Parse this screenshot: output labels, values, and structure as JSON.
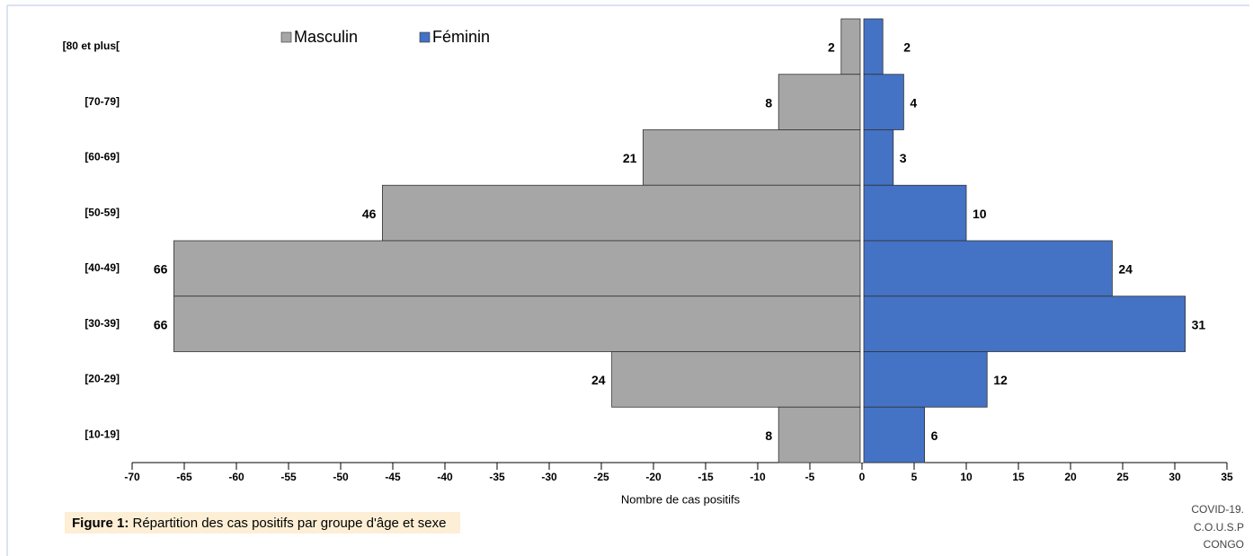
{
  "chart_data": {
    "type": "bar",
    "orientation": "horizontal",
    "stacking": "diverging",
    "categories": [
      "[80 et plus[",
      "[70-79]",
      "[60-69]",
      "[50-59]",
      "[40-49]",
      "[30-39]",
      "[20-29]",
      "[10-19]"
    ],
    "series": [
      {
        "name": "Masculin",
        "color": "#a6a6a6",
        "values": [
          -2,
          -8,
          -21,
          -46,
          -66,
          -66,
          -24,
          -8
        ],
        "value_labels": [
          "2",
          "8",
          "21",
          "46",
          "66",
          "66",
          "24",
          "8"
        ]
      },
      {
        "name": "Féminin",
        "color": "#4472c4",
        "values": [
          2,
          4,
          3,
          10,
          24,
          31,
          12,
          6
        ]
      }
    ],
    "xlim": [
      -70,
      35
    ],
    "xticks": [
      -70,
      -65,
      -60,
      -55,
      -50,
      -45,
      -40,
      -35,
      -30,
      -25,
      -20,
      -15,
      -10,
      -5,
      0,
      5,
      10,
      15,
      20,
      25,
      30,
      35
    ],
    "xlabel": "Nombre de cas positifs",
    "legend": "top",
    "caption": {
      "label": "Figure 1:",
      "text": " Répartition des cas positifs par groupe d'âge et sexe"
    },
    "source": [
      "COVID-19.",
      "C.O.U.S.P",
      "CONGO"
    ]
  }
}
